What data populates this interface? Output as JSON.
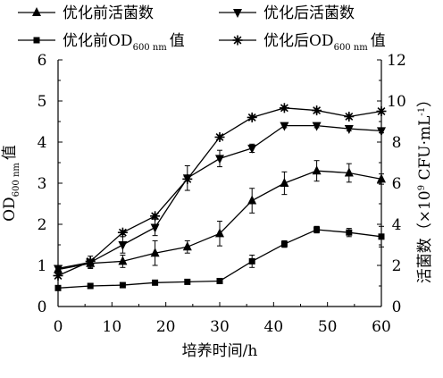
{
  "chart_data": {
    "type": "line",
    "xlabel": "培养时间/h",
    "ylabel_left": {
      "main": "OD",
      "sub": "600 nm",
      "suffix": "值"
    },
    "ylabel_right": {
      "prefix": "活菌数（×10",
      "sup": "9",
      "middle": " CFU·mL",
      "sup2": "-1",
      "suffix": "）"
    },
    "xlim": [
      0,
      60
    ],
    "ylim_left": [
      0,
      6
    ],
    "ylim_right": [
      0,
      12
    ],
    "x_ticks": [
      "0",
      "10",
      "20",
      "30",
      "40",
      "50",
      "60"
    ],
    "y_left_ticks": [
      "0",
      "1",
      "2",
      "3",
      "4",
      "5",
      "6"
    ],
    "y_right_ticks": [
      "0",
      "2",
      "4",
      "6",
      "8",
      "10",
      "12"
    ],
    "grid": false,
    "legend_position": "top",
    "x": [
      0,
      6,
      12,
      18,
      24,
      30,
      36,
      42,
      48,
      54,
      60
    ],
    "series": [
      {
        "name": "优化前活菌数",
        "marker": "triangle-up",
        "axis": "right",
        "values": [
          1.8,
          2.1,
          2.2,
          2.6,
          2.9,
          3.55,
          5.15,
          6.0,
          6.6,
          6.5,
          6.2
        ],
        "errors": [
          0.15,
          0.2,
          0.3,
          0.6,
          0.3,
          0.6,
          0.6,
          0.55,
          0.5,
          0.45,
          0.25
        ]
      },
      {
        "name": "优化后活菌数",
        "marker": "triangle-down",
        "axis": "right",
        "values": [
          1.85,
          2.15,
          3.0,
          3.85,
          6.25,
          7.2,
          7.7,
          8.8,
          8.8,
          8.65,
          8.55
        ],
        "errors": [
          0.15,
          0.3,
          0.4,
          0.4,
          0.6,
          0.4,
          0.2,
          0.1,
          0.1,
          0.1,
          0.1
        ]
      },
      {
        "name": "优化前OD600 nm值",
        "legend": {
          "main": "优化前OD",
          "sub": "600 nm",
          "suffix": "值"
        },
        "marker": "square",
        "axis": "left",
        "values": [
          0.45,
          0.5,
          0.52,
          0.58,
          0.6,
          0.62,
          1.1,
          1.52,
          1.87,
          1.8,
          1.7
        ],
        "errors": [
          0.05,
          0.03,
          0.05,
          0.03,
          0.03,
          0.03,
          0.15,
          0.08,
          0.08,
          0.1,
          0.25
        ]
      },
      {
        "name": "优化后OD600 nm值",
        "legend": {
          "main": "优化后OD",
          "sub": "600 nm",
          "suffix": "值"
        },
        "marker": "star",
        "axis": "left",
        "values": [
          0.75,
          1.1,
          1.8,
          2.2,
          3.1,
          4.12,
          4.6,
          4.83,
          4.77,
          4.62,
          4.75
        ],
        "errors": [
          0.05,
          0.05,
          0.05,
          0.05,
          0.05,
          0.05,
          0.05,
          0.05,
          0.05,
          0.05,
          0.05
        ]
      }
    ]
  }
}
